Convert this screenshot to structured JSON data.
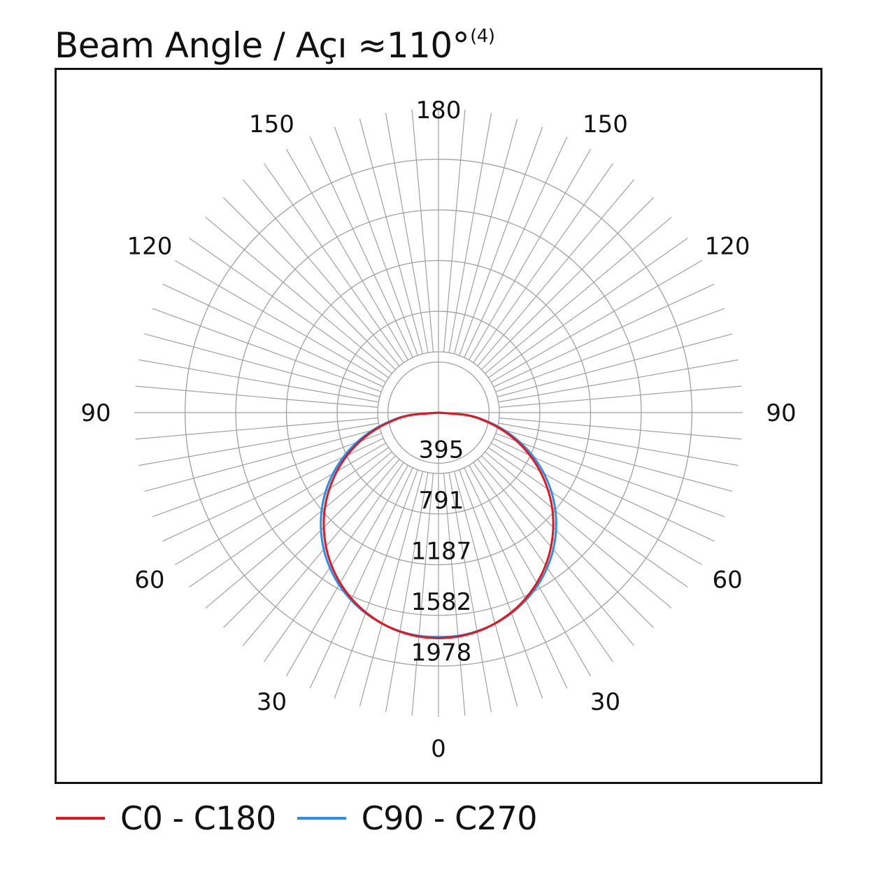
{
  "title": {
    "text": "Beam Angle / Açı ≈110°",
    "superscript": "(4)"
  },
  "chart_data": {
    "type": "polar",
    "title": "Beam Angle / Açı ≈110°(4)",
    "angle_labels": [
      "0",
      "30",
      "60",
      "90",
      "120",
      "150",
      "180"
    ],
    "radial_labels": [
      "395",
      "791",
      "1187",
      "1582",
      "1978"
    ],
    "rlim": [
      0,
      2374
    ],
    "angle_range": [
      0,
      180
    ],
    "grid": true,
    "legend_position": "bottom",
    "colors": {
      "grid": "#a0a0a0",
      "C0-C180": "#e8141c",
      "C90-C270": "#2a8fe8"
    },
    "series": [
      {
        "name": "C0 - C180",
        "color": "#e8141c",
        "angles": [
          0,
          5,
          10,
          15,
          20,
          25,
          30,
          35,
          40,
          45,
          50,
          55,
          60,
          65,
          70,
          75,
          80,
          85,
          90
        ],
        "values": [
          1760,
          1754,
          1735,
          1703,
          1659,
          1603,
          1535,
          1456,
          1366,
          1266,
          1158,
          1040,
          916,
          786,
          650,
          510,
          365,
          218,
          0
        ]
      },
      {
        "name": "C90 - C270",
        "color": "#2a8fe8",
        "angles": [
          0,
          5,
          10,
          15,
          20,
          25,
          30,
          35,
          40,
          45,
          50,
          55,
          60,
          65,
          70,
          75,
          80,
          85,
          90
        ],
        "values": [
          1750,
          1748,
          1732,
          1704,
          1665,
          1614,
          1552,
          1478,
          1393,
          1297,
          1191,
          1075,
          950,
          818,
          678,
          532,
          382,
          228,
          0
        ]
      }
    ]
  }
}
